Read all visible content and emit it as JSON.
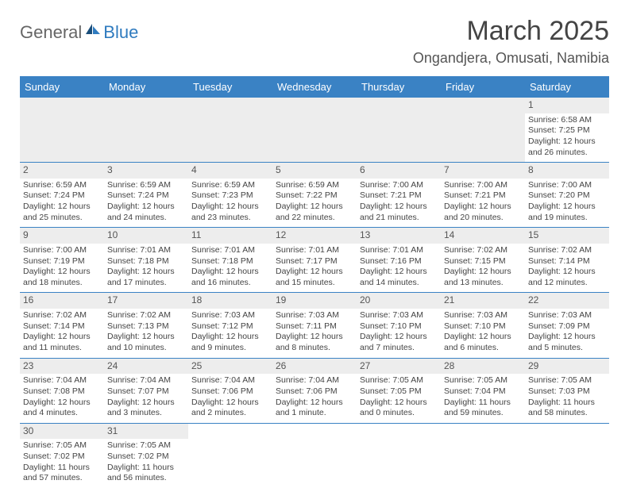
{
  "logo": {
    "part1": "General",
    "part2": "Blue"
  },
  "title": "March 2025",
  "location": "Ongandjera, Omusati, Namibia",
  "colors": {
    "headerBg": "#3a82c4",
    "headerText": "#ffffff",
    "dayNumBg": "#ededed",
    "rowBorder": "#3a82c4",
    "text": "#444444"
  },
  "weekdays": [
    "Sunday",
    "Monday",
    "Tuesday",
    "Wednesday",
    "Thursday",
    "Friday",
    "Saturday"
  ],
  "weeks": [
    [
      {
        "empty": true
      },
      {
        "empty": true
      },
      {
        "empty": true
      },
      {
        "empty": true
      },
      {
        "empty": true
      },
      {
        "empty": true
      },
      {
        "day": 1,
        "sunrise": "6:58 AM",
        "sunset": "7:25 PM",
        "daylight": "12 hours and 26 minutes."
      }
    ],
    [
      {
        "day": 2,
        "sunrise": "6:59 AM",
        "sunset": "7:24 PM",
        "daylight": "12 hours and 25 minutes."
      },
      {
        "day": 3,
        "sunrise": "6:59 AM",
        "sunset": "7:24 PM",
        "daylight": "12 hours and 24 minutes."
      },
      {
        "day": 4,
        "sunrise": "6:59 AM",
        "sunset": "7:23 PM",
        "daylight": "12 hours and 23 minutes."
      },
      {
        "day": 5,
        "sunrise": "6:59 AM",
        "sunset": "7:22 PM",
        "daylight": "12 hours and 22 minutes."
      },
      {
        "day": 6,
        "sunrise": "7:00 AM",
        "sunset": "7:21 PM",
        "daylight": "12 hours and 21 minutes."
      },
      {
        "day": 7,
        "sunrise": "7:00 AM",
        "sunset": "7:21 PM",
        "daylight": "12 hours and 20 minutes."
      },
      {
        "day": 8,
        "sunrise": "7:00 AM",
        "sunset": "7:20 PM",
        "daylight": "12 hours and 19 minutes."
      }
    ],
    [
      {
        "day": 9,
        "sunrise": "7:00 AM",
        "sunset": "7:19 PM",
        "daylight": "12 hours and 18 minutes."
      },
      {
        "day": 10,
        "sunrise": "7:01 AM",
        "sunset": "7:18 PM",
        "daylight": "12 hours and 17 minutes."
      },
      {
        "day": 11,
        "sunrise": "7:01 AM",
        "sunset": "7:18 PM",
        "daylight": "12 hours and 16 minutes."
      },
      {
        "day": 12,
        "sunrise": "7:01 AM",
        "sunset": "7:17 PM",
        "daylight": "12 hours and 15 minutes."
      },
      {
        "day": 13,
        "sunrise": "7:01 AM",
        "sunset": "7:16 PM",
        "daylight": "12 hours and 14 minutes."
      },
      {
        "day": 14,
        "sunrise": "7:02 AM",
        "sunset": "7:15 PM",
        "daylight": "12 hours and 13 minutes."
      },
      {
        "day": 15,
        "sunrise": "7:02 AM",
        "sunset": "7:14 PM",
        "daylight": "12 hours and 12 minutes."
      }
    ],
    [
      {
        "day": 16,
        "sunrise": "7:02 AM",
        "sunset": "7:14 PM",
        "daylight": "12 hours and 11 minutes."
      },
      {
        "day": 17,
        "sunrise": "7:02 AM",
        "sunset": "7:13 PM",
        "daylight": "12 hours and 10 minutes."
      },
      {
        "day": 18,
        "sunrise": "7:03 AM",
        "sunset": "7:12 PM",
        "daylight": "12 hours and 9 minutes."
      },
      {
        "day": 19,
        "sunrise": "7:03 AM",
        "sunset": "7:11 PM",
        "daylight": "12 hours and 8 minutes."
      },
      {
        "day": 20,
        "sunrise": "7:03 AM",
        "sunset": "7:10 PM",
        "daylight": "12 hours and 7 minutes."
      },
      {
        "day": 21,
        "sunrise": "7:03 AM",
        "sunset": "7:10 PM",
        "daylight": "12 hours and 6 minutes."
      },
      {
        "day": 22,
        "sunrise": "7:03 AM",
        "sunset": "7:09 PM",
        "daylight": "12 hours and 5 minutes."
      }
    ],
    [
      {
        "day": 23,
        "sunrise": "7:04 AM",
        "sunset": "7:08 PM",
        "daylight": "12 hours and 4 minutes."
      },
      {
        "day": 24,
        "sunrise": "7:04 AM",
        "sunset": "7:07 PM",
        "daylight": "12 hours and 3 minutes."
      },
      {
        "day": 25,
        "sunrise": "7:04 AM",
        "sunset": "7:06 PM",
        "daylight": "12 hours and 2 minutes."
      },
      {
        "day": 26,
        "sunrise": "7:04 AM",
        "sunset": "7:06 PM",
        "daylight": "12 hours and 1 minute."
      },
      {
        "day": 27,
        "sunrise": "7:05 AM",
        "sunset": "7:05 PM",
        "daylight": "12 hours and 0 minutes."
      },
      {
        "day": 28,
        "sunrise": "7:05 AM",
        "sunset": "7:04 PM",
        "daylight": "11 hours and 59 minutes."
      },
      {
        "day": 29,
        "sunrise": "7:05 AM",
        "sunset": "7:03 PM",
        "daylight": "11 hours and 58 minutes."
      }
    ],
    [
      {
        "day": 30,
        "sunrise": "7:05 AM",
        "sunset": "7:02 PM",
        "daylight": "11 hours and 57 minutes."
      },
      {
        "day": 31,
        "sunrise": "7:05 AM",
        "sunset": "7:02 PM",
        "daylight": "11 hours and 56 minutes."
      },
      {
        "empty": true,
        "trailing": true
      },
      {
        "empty": true,
        "trailing": true
      },
      {
        "empty": true,
        "trailing": true
      },
      {
        "empty": true,
        "trailing": true
      },
      {
        "empty": true,
        "trailing": true
      }
    ]
  ],
  "labels": {
    "sunrise": "Sunrise:",
    "sunset": "Sunset:",
    "daylight": "Daylight:"
  }
}
